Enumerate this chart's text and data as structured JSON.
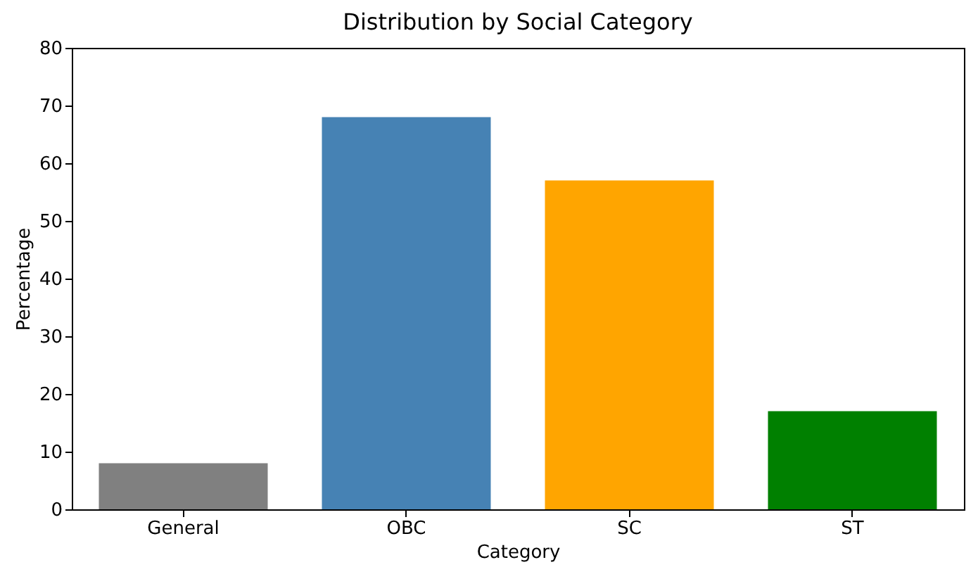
{
  "chart_data": {
    "type": "bar",
    "title": "Distribution by Social Category",
    "xlabel": "Category",
    "ylabel": "Percentage",
    "categories": [
      "General",
      "OBC",
      "SC",
      "ST"
    ],
    "values": [
      8,
      68,
      57,
      17
    ],
    "colors": [
      "#808080",
      "#4682b4",
      "#ffa500",
      "#008000"
    ],
    "ylim": [
      0,
      80
    ],
    "yticks": [
      0,
      10,
      20,
      30,
      40,
      50,
      60,
      70,
      80
    ],
    "grid": false
  }
}
